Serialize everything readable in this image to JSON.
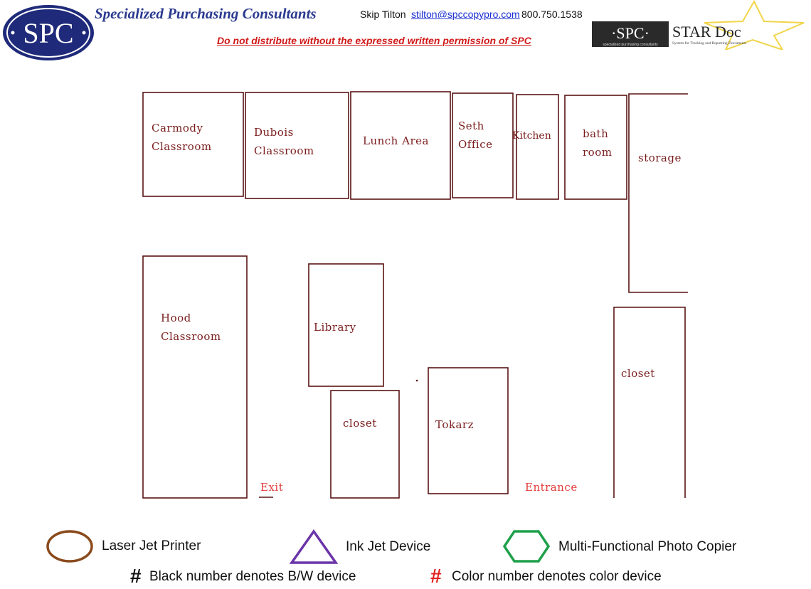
{
  "header": {
    "logo_text": "SPC",
    "company_name": "Specialized Purchasing Consultants",
    "contact_name": "Skip Tilton",
    "contact_email": "stilton@spccopypro.com",
    "contact_phone": "800.750.1538",
    "disclaimer": "Do not distribute without the expressed written permission of SPC",
    "stardoc_spc": "·SPC·",
    "stardoc_title": "STAR Doc",
    "stardoc_sub1": "specialized purchasing consultants",
    "stardoc_sub2": "System for Tracking and Reporting Documents"
  },
  "rooms": {
    "carmody": [
      "Carmody",
      "Classroom"
    ],
    "dubois": [
      "Dubois",
      "Classroom"
    ],
    "lunch": "Lunch Area",
    "seth": [
      "Seth",
      "Office"
    ],
    "kitchen": "Kitchen",
    "bathroom": [
      "bath",
      "room"
    ],
    "storage": "storage",
    "hood": [
      "Hood",
      "Classroom"
    ],
    "library": "Library",
    "closet_center": "closet",
    "tokarz": "Tokarz",
    "closet_right": "closet",
    "exit": "Exit",
    "entrance": "Entrance"
  },
  "legend": {
    "laser": "Laser Jet Printer",
    "inkjet": "Ink Jet Device",
    "mfp": "Multi-Functional Photo Copier",
    "bw_symbol": "#",
    "bw_text": "Black number denotes B/W device",
    "color_symbol": "#",
    "color_text": "Color number denotes color device",
    "colors": {
      "laser": "#8a4a1c",
      "inkjet": "#6b35a8",
      "mfp": "#1fa04a",
      "color_hash": "#e02020"
    }
  }
}
